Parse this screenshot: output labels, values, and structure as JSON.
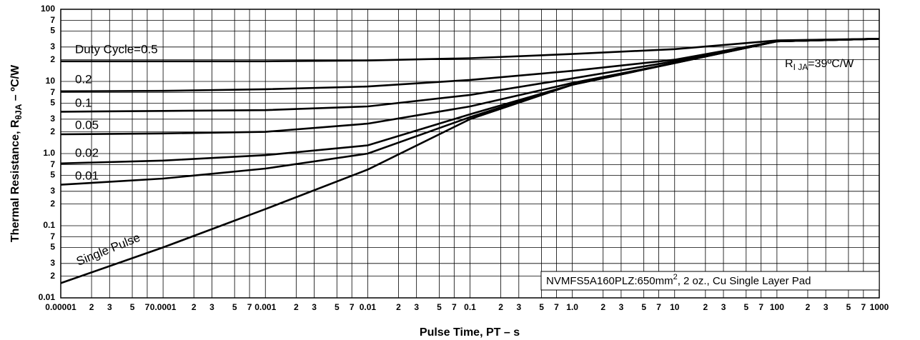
{
  "chart_data": {
    "type": "line",
    "log_x": true,
    "log_y": true,
    "grid": true,
    "xlabel": "Pulse Time, PT  –  s",
    "ylabel": {
      "text": "Thermal Resistance, R",
      "sub": "θJA",
      "rest": "  –  ºC/W"
    },
    "annotation": {
      "text": "R",
      "sub": "I JA",
      "rest": "=39ºC/W"
    },
    "note": {
      "text": "NVMFS5A160PLZ:650mm",
      "sup": "2",
      "rest": ", 2 oz., Cu Single Layer Pad"
    },
    "xlim": [
      1e-05,
      1000
    ],
    "ylim": [
      0.01,
      100
    ],
    "xticks": [
      {
        "value": 1e-05,
        "label": "0.00001"
      },
      {
        "value": 2e-05,
        "label": "2"
      },
      {
        "value": 3e-05,
        "label": "3"
      },
      {
        "value": 5e-05,
        "label": "5"
      },
      {
        "value": 7e-05,
        "label": "7"
      },
      0.0001,
      {
        "value": 0.0002,
        "label": "2"
      },
      {
        "value": 0.0003,
        "label": "3"
      },
      {
        "value": 0.0005,
        "label": "5"
      },
      {
        "value": 0.0007,
        "label": "7"
      },
      0.001,
      {
        "value": 0.002,
        "label": "2"
      },
      {
        "value": 0.003,
        "label": "3"
      },
      {
        "value": 0.005,
        "label": "5"
      },
      {
        "value": 0.007,
        "label": "7"
      },
      0.01,
      {
        "value": 0.02,
        "label": "2"
      },
      {
        "value": 0.03,
        "label": "3"
      },
      {
        "value": 0.05,
        "label": "5"
      },
      {
        "value": 0.07,
        "label": "7"
      },
      0.1,
      {
        "value": 0.2,
        "label": "2"
      },
      {
        "value": 0.3,
        "label": "3"
      },
      {
        "value": 0.5,
        "label": "5"
      },
      {
        "value": 0.7,
        "label": "7"
      },
      {
        "value": 1,
        "label": "1.0"
      },
      {
        "value": 2,
        "label": "2"
      },
      {
        "value": 3,
        "label": "3"
      },
      {
        "value": 5,
        "label": "5"
      },
      {
        "value": 7,
        "label": "7"
      },
      10,
      {
        "value": 20,
        "label": "2"
      },
      {
        "value": 30,
        "label": "3"
      },
      {
        "value": 50,
        "label": "5"
      },
      {
        "value": 70,
        "label": "7"
      },
      100,
      {
        "value": 200,
        "label": "2"
      },
      {
        "value": 300,
        "label": "3"
      },
      {
        "value": 500,
        "label": "5"
      },
      {
        "value": 700,
        "label": "7"
      },
      1000
    ],
    "yticks": [
      0.01,
      {
        "value": 0.02,
        "label": "2"
      },
      {
        "value": 0.03,
        "label": "3"
      },
      {
        "value": 0.05,
        "label": "5"
      },
      {
        "value": 0.07,
        "label": "7"
      },
      0.1,
      {
        "value": 0.2,
        "label": "2"
      },
      {
        "value": 0.3,
        "label": "3"
      },
      {
        "value": 0.5,
        "label": "5"
      },
      {
        "value": 0.7,
        "label": "7"
      },
      {
        "value": 1,
        "label": "1.0"
      },
      {
        "value": 2,
        "label": "2"
      },
      {
        "value": 3,
        "label": "3"
      },
      {
        "value": 5,
        "label": "5"
      },
      {
        "value": 7,
        "label": "7"
      },
      10,
      {
        "value": 20,
        "label": "2"
      },
      {
        "value": 30,
        "label": "3"
      },
      {
        "value": 50,
        "label": "5"
      },
      {
        "value": 70,
        "label": "7"
      },
      100
    ],
    "x": [
      1e-05,
      0.0001,
      0.001,
      0.01,
      0.1,
      1,
      10,
      100,
      1000
    ],
    "series": [
      {
        "name": "Duty Cycle=0.5",
        "color": "#000000",
        "values": [
          19,
          19,
          19,
          19.5,
          21,
          24,
          28,
          37,
          39
        ]
      },
      {
        "name": "0.2",
        "color": "#000000",
        "values": [
          7.3,
          7.4,
          7.8,
          8.5,
          10.5,
          14,
          20,
          36,
          39
        ]
      },
      {
        "name": "0.1",
        "color": "#000000",
        "values": [
          3.8,
          3.9,
          4.0,
          4.5,
          6.5,
          11,
          19,
          36,
          39
        ]
      },
      {
        "name": "0.05",
        "color": "#000000",
        "values": [
          1.85,
          1.9,
          2.0,
          2.6,
          4.5,
          9.5,
          18,
          36,
          39
        ]
      },
      {
        "name": "0.02",
        "color": "#000000",
        "values": [
          0.73,
          0.8,
          0.95,
          1.3,
          3.5,
          9,
          18,
          36,
          39
        ]
      },
      {
        "name": "0.01",
        "color": "#000000",
        "values": [
          0.37,
          0.45,
          0.62,
          1.0,
          3.2,
          9,
          18,
          36,
          39
        ]
      },
      {
        "name": "Single Pulse",
        "color": "#000000",
        "values": [
          0.016,
          0.05,
          0.17,
          0.6,
          3,
          9,
          18,
          36,
          39
        ]
      }
    ]
  }
}
